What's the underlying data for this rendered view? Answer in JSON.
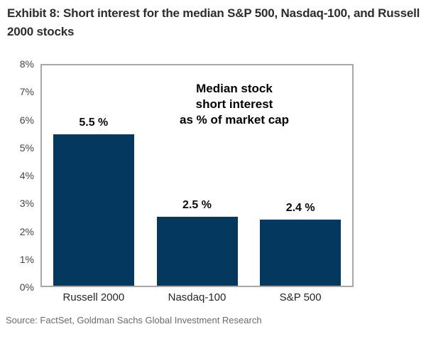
{
  "chart_data": {
    "type": "bar",
    "title": "Exhibit 8: Short interest for the median S&P 500, Nasdaq-100, and Russell 2000 stocks",
    "categories": [
      "Russell 2000",
      "Nasdaq-100",
      "S&P 500"
    ],
    "values": [
      5.5,
      2.5,
      2.4
    ],
    "value_labels": [
      "5.5 %",
      "2.5 %",
      "2.4 %"
    ],
    "annotation_lines": [
      "Median stock",
      "short interest",
      "as % of market cap"
    ],
    "ylim": [
      0,
      8
    ],
    "ytick_labels": [
      "8%",
      "7%",
      "6%",
      "5%",
      "4%",
      "3%",
      "2%",
      "1%",
      "0%"
    ],
    "grid": false,
    "legend": "none",
    "colors": {
      "bar": "#05385e",
      "plot_border": "#a8a8a8"
    }
  },
  "footer": {
    "source": "Source: FactSet, Goldman Sachs Global Investment Research"
  }
}
